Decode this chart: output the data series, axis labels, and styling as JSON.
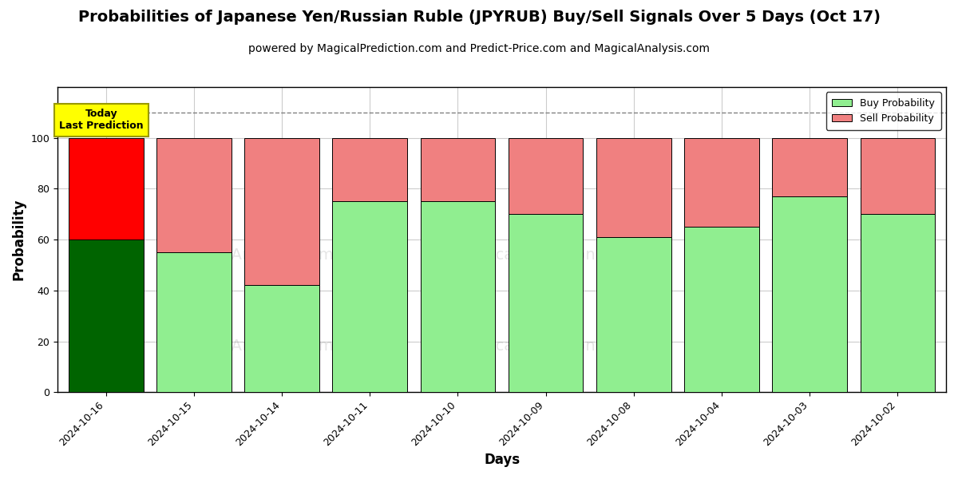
{
  "title": "Probabilities of Japanese Yen/Russian Ruble (JPYRUB) Buy/Sell Signals Over 5 Days (Oct 17)",
  "subtitle": "powered by MagicalPrediction.com and Predict-Price.com and MagicalAnalysis.com",
  "xlabel": "Days",
  "ylabel": "Probability",
  "dates": [
    "2024-10-16",
    "2024-10-15",
    "2024-10-14",
    "2024-10-11",
    "2024-10-10",
    "2024-10-09",
    "2024-10-08",
    "2024-10-04",
    "2024-10-03",
    "2024-10-02"
  ],
  "buy_values": [
    60,
    55,
    42,
    75,
    75,
    70,
    61,
    65,
    77,
    70
  ],
  "sell_values": [
    40,
    45,
    58,
    25,
    25,
    30,
    39,
    35,
    23,
    30
  ],
  "today_buy_color": "#006400",
  "today_sell_color": "#ff0000",
  "buy_color_light": "#90EE90",
  "sell_color_light": "#F08080",
  "today_annotation_bg": "#ffff00",
  "today_annotation_text": "Today\nLast Prediction",
  "bar_edge_color": "#000000",
  "ylim": [
    0,
    120
  ],
  "yticks": [
    0,
    20,
    40,
    60,
    80,
    100
  ],
  "dashed_line_y": 110,
  "legend_buy_label": "Buy Probability",
  "legend_sell_label": "Sell Probability",
  "background_color": "#ffffff",
  "grid_color": "#cccccc",
  "title_fontsize": 14,
  "subtitle_fontsize": 10,
  "axis_label_fontsize": 12,
  "tick_fontsize": 9,
  "bar_width": 0.85
}
